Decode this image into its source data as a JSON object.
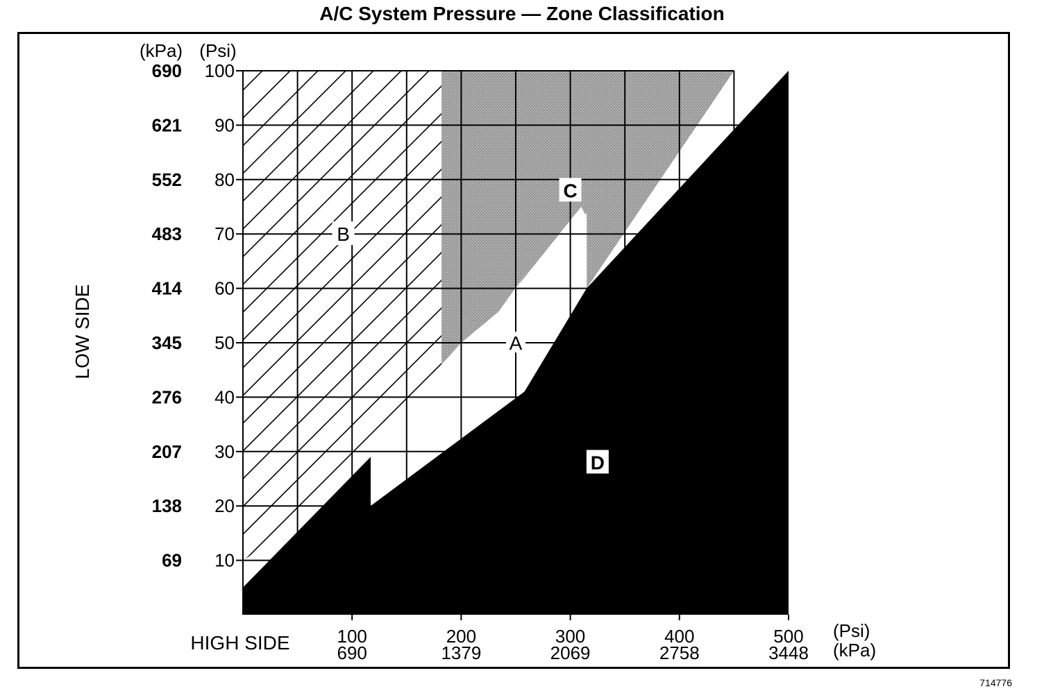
{
  "title": "A/C System Pressure — Zone Classification",
  "figure_id": "714776",
  "chart_data": {
    "type": "area",
    "title": "A/C System Pressure — Zone Classification",
    "xlabel": "HIGH SIDE",
    "ylabel": "LOW SIDE",
    "x_unit_primary": "(Psi)",
    "x_unit_secondary": "(kPa)",
    "y_unit_primary": "(Psi)",
    "y_unit_secondary": "(kPa)",
    "xlim": [
      0,
      500
    ],
    "ylim": [
      0,
      100
    ],
    "x_ticks_psi": [
      100,
      200,
      300,
      400,
      500
    ],
    "x_ticks_kpa": [
      "690",
      "1379",
      "2069",
      "2758",
      "3448"
    ],
    "y_ticks_psi": [
      100,
      90,
      80,
      70,
      60,
      50,
      40,
      30,
      20,
      10
    ],
    "y_ticks_kpa": [
      "690",
      "621",
      "552",
      "483",
      "414",
      "345",
      "276",
      "207",
      "138",
      "69"
    ],
    "grid": true,
    "zones": [
      {
        "label": "A",
        "label_pos": [
          250,
          50
        ],
        "fill": "white",
        "polygon": [
          [
            50,
            17
          ],
          [
            117,
            32
          ],
          [
            117,
            22
          ],
          [
            170,
            43
          ],
          [
            170,
            38
          ],
          [
            200,
            50
          ],
          [
            200,
            46
          ],
          [
            260,
            63
          ],
          [
            250,
            60
          ],
          [
            310,
            75
          ],
          [
            315,
            73
          ],
          [
            315,
            60
          ],
          [
            258,
            41
          ],
          [
            200,
            27
          ],
          [
            185,
            25
          ],
          [
            117,
            20
          ],
          [
            60,
            14
          ]
        ]
      },
      {
        "label": "B",
        "label_pos": [
          92,
          70
        ],
        "fill": "hatch",
        "polygon": [
          [
            0,
            10
          ],
          [
            0,
            100
          ],
          [
            182,
            100
          ],
          [
            182,
            46
          ],
          [
            150,
            36
          ],
          [
            117,
            31
          ],
          [
            60,
            18
          ]
        ]
      },
      {
        "label": "C",
        "label_pos": [
          300,
          78
        ],
        "fill": "stipple",
        "polygon": [
          [
            182,
            100
          ],
          [
            450,
            100
          ],
          [
            315,
            60
          ],
          [
            315,
            74
          ],
          [
            300,
            69
          ],
          [
            260,
            60
          ],
          [
            200,
            50
          ],
          [
            182,
            46
          ]
        ]
      },
      {
        "label": "D",
        "label_pos": [
          325,
          28
        ],
        "fill": "black",
        "polygon": [
          [
            0,
            0
          ],
          [
            0,
            5
          ],
          [
            117,
            29
          ],
          [
            117,
            20
          ],
          [
            258,
            41
          ],
          [
            315,
            60
          ],
          [
            500,
            100
          ],
          [
            500,
            0
          ]
        ]
      }
    ]
  }
}
